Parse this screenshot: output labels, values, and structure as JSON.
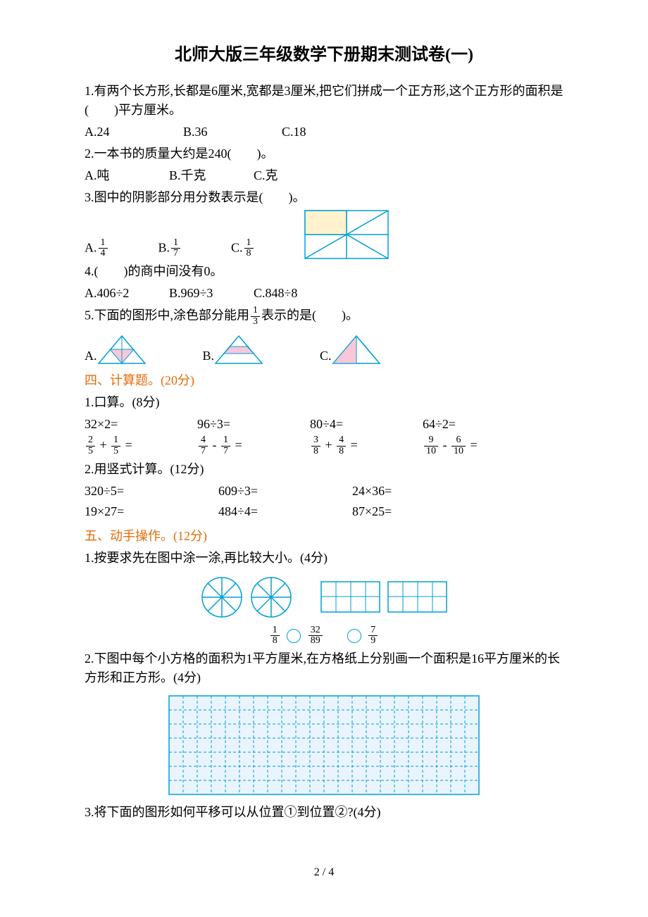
{
  "title": "北师大版三年级数学下册期末测试卷(一)",
  "q1": {
    "text": "1.有两个长方形,长都是6厘米,宽都是3厘米,把它们拼成一个正方形,这个正方形的面积是(　　)平方厘米。",
    "a": "A.24",
    "b": "B.36",
    "c": "C.18"
  },
  "q2": {
    "text": "2.一本书的质量大约是240(　　)。",
    "a": "A.吨",
    "b": "B.千克",
    "c": "C.克"
  },
  "q3": {
    "text": "3.图中的阴影部分用分数表示是(　　)。",
    "a": "A.",
    "b": "B.",
    "c": "C.",
    "af": {
      "n": "1",
      "d": "4"
    },
    "bf": {
      "n": "1",
      "d": "7"
    },
    "cf": {
      "n": "1",
      "d": "8"
    },
    "svg": {
      "stroke": "#009fd6",
      "fill": "#fff2cc",
      "w": 120,
      "h": 70
    }
  },
  "q4": {
    "text": "4.(　　)的商中间没有0。",
    "a": "A.406÷2",
    "b": "B.969÷3",
    "c": "C.848÷8"
  },
  "q5": {
    "text_pre": "5.下面的图形中,涂色部分能用",
    "frac": {
      "n": "1",
      "d": "3"
    },
    "text_post": "表示的是(　　)。",
    "a": "A.",
    "b": "B.",
    "c": "C.",
    "tri_stroke": "#009fd6",
    "tri_fill": "#f8c8d8"
  },
  "s4": {
    "head": "四、计算题。(20分)",
    "p1": "1.口算。(8分)",
    "r1": [
      "32×2=",
      "96÷3=",
      "80÷4=",
      "64÷2="
    ],
    "r2": [
      {
        "t": "frac",
        "a": {
          "n": "2",
          "d": "5"
        },
        "op": " + ",
        "b": {
          "n": "1",
          "d": "5"
        },
        "eq": " ="
      },
      {
        "t": "frac",
        "a": {
          "n": "4",
          "d": "7"
        },
        "op": " - ",
        "b": {
          "n": "1",
          "d": "7"
        },
        "eq": " ="
      },
      {
        "t": "frac",
        "a": {
          "n": "3",
          "d": "8"
        },
        "op": " + ",
        "b": {
          "n": "4",
          "d": "8"
        },
        "eq": " ="
      },
      {
        "t": "frac",
        "a": {
          "n": "9",
          "d": "10"
        },
        "op": " - ",
        "b": {
          "n": "6",
          "d": "10"
        },
        "eq": " ="
      }
    ],
    "p2": "2.用竖式计算。(12分)",
    "r3": [
      "320÷5=",
      "609÷3=",
      "24×36="
    ],
    "r4": [
      "19×27=",
      "484÷4=",
      "87×25="
    ]
  },
  "s5": {
    "head": "五、动手操作。(12分)",
    "p1": "1.按要求先在图中涂一涂,再比较大小。(4分)",
    "pie_stroke": "#009fd6",
    "grid_stroke": "#009fd6",
    "cmp": [
      {
        "n": "1",
        "d": "8"
      },
      {
        "n": "32",
        "d": "89"
      },
      {
        "n": "7",
        "d": "9"
      }
    ],
    "p2": "2.下图中每个小方格的面积为1平方厘米,在方格纸上分别画一个面积是16平方厘米的长方形和正方形。(4分)",
    "grid": {
      "cols": 22,
      "rows": 7,
      "cell": 20,
      "stroke": "#009fd6",
      "bg": "#eaf4ff"
    },
    "p3": "3.将下面的图形如何平移可以从位置①到位置②?(4分)"
  },
  "footer": "2 / 4"
}
